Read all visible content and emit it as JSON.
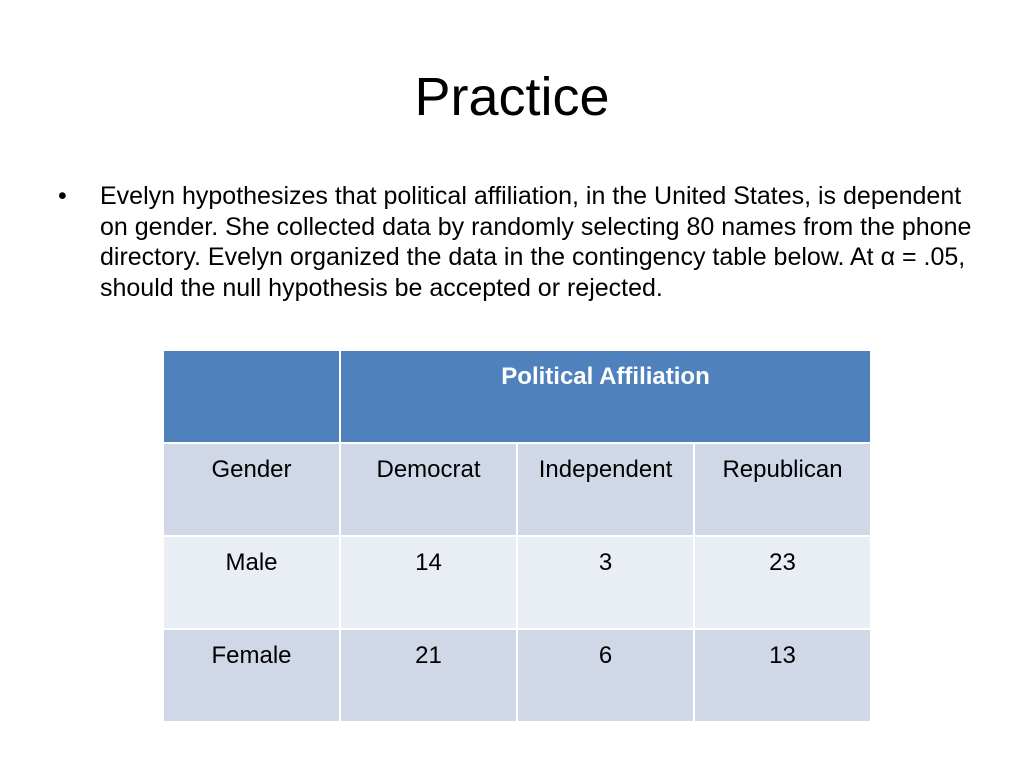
{
  "slide": {
    "title": "Practice",
    "bullet_symbol": "•",
    "bullet_text": "Evelyn hypothesizes that political affiliation, in the United States, is dependent on gender. She collected data by randomly selecting 80 names from the phone directory. Evelyn organized the data in the contingency table below. At α = .05, should the null hypothesis be accepted or rejected."
  },
  "table": {
    "header_corner": "",
    "header_group": "Political Affiliation",
    "columns": [
      "Gender",
      "Democrat",
      "Independent",
      "Republican"
    ],
    "rows": [
      [
        "Male",
        "14",
        "3",
        "23"
      ],
      [
        "Female",
        "21",
        "6",
        "13"
      ]
    ]
  },
  "colors": {
    "header_bg": "#4f81bd",
    "row_dark": "#d0d8e8",
    "row_light": "#e9edf4"
  }
}
